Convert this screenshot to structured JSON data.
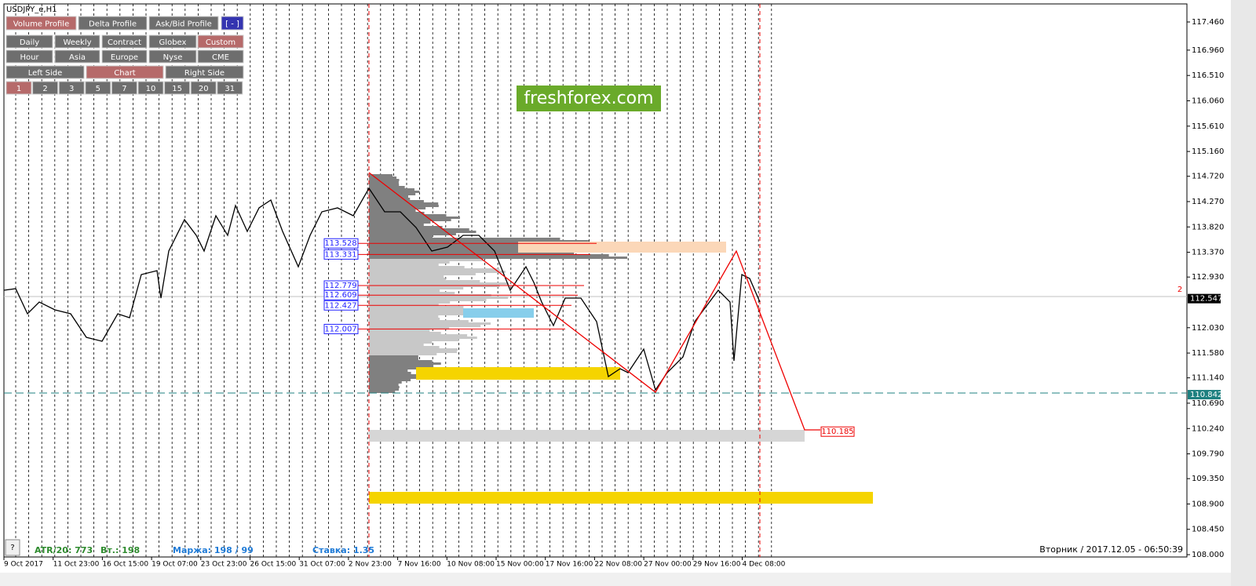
{
  "window_title": "USDJPY_e,H1",
  "toolbar": {
    "rows": [
      [
        "Volume Profile",
        "Delta Profile",
        "Ask/Bid Profile",
        "[ - ]"
      ],
      [
        "Daily",
        "Weekly",
        "Contract",
        "Globex",
        "Custom"
      ],
      [
        "Hour",
        "Asia",
        "Europe",
        "Nyse",
        "CME"
      ],
      [
        "Left Side",
        "Chart",
        "Right Side"
      ],
      [
        "1",
        "2",
        "3",
        "5",
        "7",
        "10",
        "15",
        "20",
        "31"
      ]
    ]
  },
  "watermark": "freshforex.com",
  "price_axis": [
    "117.460",
    "116.960",
    "116.510",
    "116.060",
    "115.610",
    "115.160",
    "114.720",
    "114.270",
    "113.820",
    "113.370",
    "112.930",
    "112.030",
    "111.580",
    "111.140",
    "110.690",
    "110.240",
    "109.790",
    "109.350",
    "108.900",
    "108.450",
    "108.000"
  ],
  "current_price": "112.547",
  "support_price": "110.842",
  "levels": [
    "113.528",
    "113.331",
    "112.779",
    "112.609",
    "112.427",
    "112.007"
  ],
  "target": "110.185",
  "marker": "2",
  "time_axis": [
    "9 Oct 2017",
    "11 Oct 23:00",
    "16 Oct 15:00",
    "19 Oct 07:00",
    "23 Oct 23:00",
    "26 Oct 15:00",
    "31 Oct 07:00",
    "2 Nov 23:00",
    "7 Nov 16:00",
    "10 Nov 08:00",
    "15 Nov 00:00",
    "17 Nov 16:00",
    "22 Nov 08:00",
    "27 Nov 00:00",
    "29 Nov 16:00",
    "4 Dec 08:00"
  ],
  "status": {
    "atr": "ATR/20: 773",
    "tue": "Вт.: 198",
    "margin": "Маржа: 198 / 99",
    "rate": "Ставка: 1.35"
  },
  "help": "?",
  "clock": "Вторник / 2017.12.05 - 06:50:39"
}
